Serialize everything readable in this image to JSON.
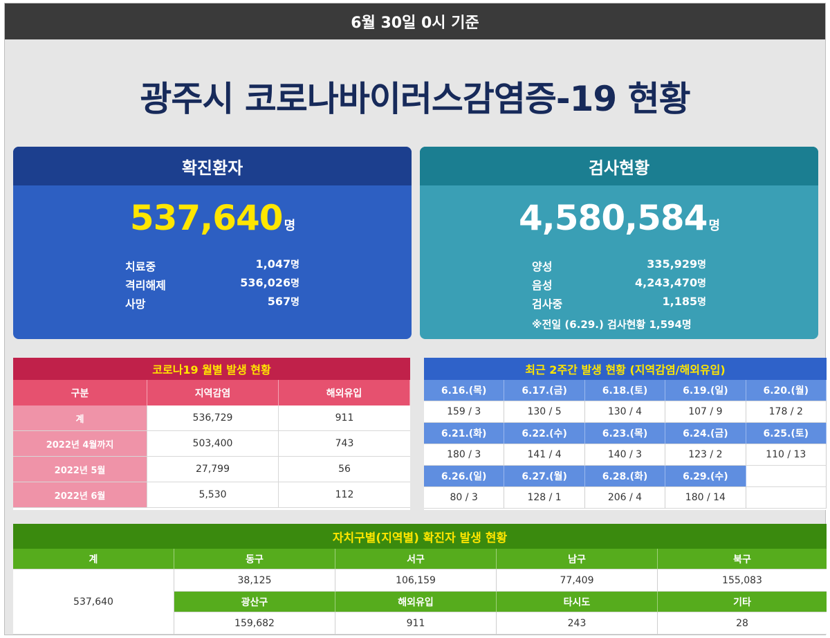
{
  "header": {
    "basis": "6월 30일 0시 기준"
  },
  "title": "광주시 코로나바이러스감염증-19 현황",
  "confirmed": {
    "heading": "확진환자",
    "total": "537,640",
    "unit": "명",
    "rows": [
      {
        "label": "치료중",
        "value": "1,047",
        "unit": "명"
      },
      {
        "label": "격리해제",
        "value": "536,026",
        "unit": "명"
      },
      {
        "label": "사망",
        "value": "567",
        "unit": "명"
      }
    ]
  },
  "tests": {
    "heading": "검사현황",
    "total": "4,580,584",
    "unit": "명",
    "rows": [
      {
        "label": "양성",
        "value": "335,929",
        "unit": "명"
      },
      {
        "label": "음성",
        "value": "4,243,470",
        "unit": "명"
      },
      {
        "label": "검사중",
        "value": "1,185",
        "unit": "명"
      }
    ],
    "note": "※전일 (6.29.) 검사현황 1,594명"
  },
  "monthly": {
    "title": "코로나19 월별 발생 현황",
    "headers": [
      "구분",
      "지역감염",
      "해외유입"
    ],
    "rows": [
      [
        "계",
        "536,729",
        "911"
      ],
      [
        "2022년 4월까지",
        "503,400",
        "743"
      ],
      [
        "2022년 5월",
        "27,799",
        "56"
      ],
      [
        "2022년 6월",
        "5,530",
        "112"
      ]
    ]
  },
  "weekly": {
    "title": "최근 2주간 발생 현황 (지역감염/해외유입)",
    "rows": [
      {
        "dates": [
          "6.16.(목)",
          "6.17.(금)",
          "6.18.(토)",
          "6.19.(일)",
          "6.20.(월)"
        ],
        "values": [
          "159 / 3",
          "130 / 5",
          "130 / 4",
          "107 / 9",
          "178 / 2"
        ]
      },
      {
        "dates": [
          "6.21.(화)",
          "6.22.(수)",
          "6.23.(목)",
          "6.24.(금)",
          "6.25.(토)"
        ],
        "values": [
          "180 / 3",
          "141 / 4",
          "140 / 3",
          "123 / 2",
          "110 / 13"
        ]
      },
      {
        "dates": [
          "6.26.(일)",
          "6.27.(월)",
          "6.28.(화)",
          "6.29.(수)",
          ""
        ],
        "values": [
          "80 / 3",
          "128 / 1",
          "206 / 4",
          "180 / 14",
          ""
        ]
      }
    ]
  },
  "district": {
    "title": "자치구별(지역별) 확진자 발생 현황",
    "total_label": "계",
    "total_value": "537,640",
    "row1_headers": [
      "동구",
      "서구",
      "남구",
      "북구"
    ],
    "row1_values": [
      "38,125",
      "106,159",
      "77,409",
      "155,083"
    ],
    "row2_headers": [
      "광산구",
      "해외유입",
      "타시도",
      "기타"
    ],
    "row2_values": [
      "159,682",
      "911",
      "243",
      "28"
    ]
  }
}
